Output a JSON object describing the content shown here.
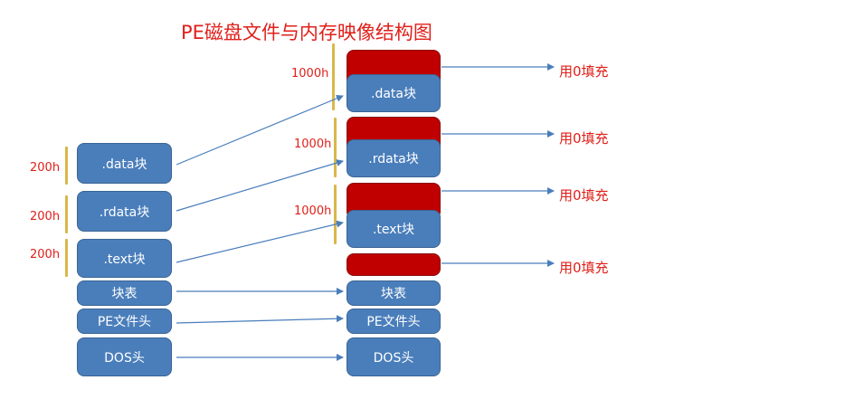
{
  "title": "PE磁盘文件与内存映像结构图",
  "disk": {
    "data": ".data块",
    "rdata": ".rdata块",
    "text": ".text块",
    "section_table": "块表",
    "pe_header": "PE文件头",
    "dos_header": "DOS头",
    "size_data": "200h",
    "size_rdata": "200h",
    "size_text": "200h"
  },
  "memory": {
    "data": ".data块",
    "rdata": ".rdata块",
    "text": ".text块",
    "section_table": "块表",
    "pe_header": "PE文件头",
    "dos_header": "DOS头",
    "size_data": "1000h",
    "size_rdata": "1000h",
    "size_text": "1000h"
  },
  "fill_label_1": "用0填充",
  "fill_label_2": "用0填充",
  "fill_label_3": "用0填充",
  "fill_label_4": "用0填充",
  "colors": {
    "block": "#4a7ebb",
    "padding": "#c00000",
    "label": "#e0201a",
    "arrow": "#4a7ebb"
  }
}
